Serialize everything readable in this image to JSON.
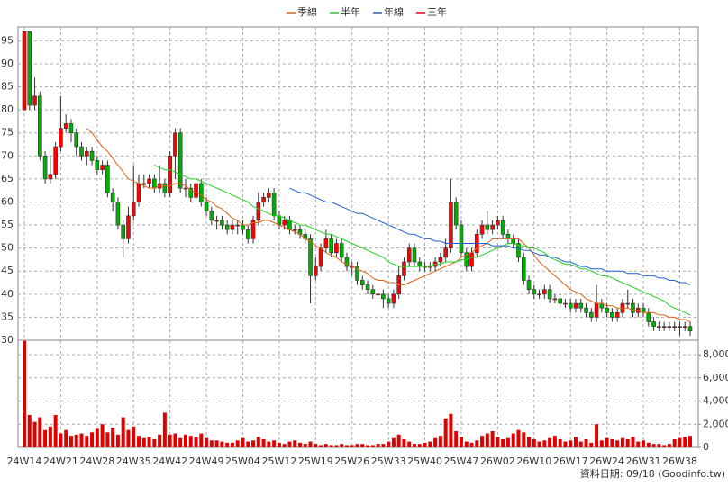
{
  "chart_data": {
    "type": "candlestick",
    "ylim": [
      30,
      98
    ],
    "yticks": [
      30,
      35,
      40,
      45,
      50,
      55,
      60,
      65,
      70,
      75,
      80,
      85,
      90,
      95
    ],
    "grid": true,
    "up_color": "#ff0000",
    "down_color": "#00b000",
    "categories": [
      "24W14",
      null,
      null,
      null,
      null,
      null,
      null,
      "24W21",
      null,
      null,
      null,
      null,
      null,
      null,
      "24W28",
      null,
      null,
      null,
      null,
      null,
      null,
      "24W35",
      null,
      null,
      null,
      null,
      null,
      null,
      "24W42",
      null,
      null,
      null,
      null,
      null,
      null,
      "24W49",
      null,
      null,
      null,
      null,
      null,
      null,
      "25W04",
      null,
      null,
      null,
      null,
      null,
      null,
      "25W12",
      null,
      null,
      null,
      null,
      null,
      null,
      "25W19",
      null,
      null,
      null,
      null,
      null,
      null,
      "25W26",
      null,
      null,
      null,
      null,
      null,
      null,
      "25W33",
      null,
      null,
      null,
      null,
      null,
      null,
      "25W40",
      null,
      null,
      null,
      null,
      null,
      null,
      "25W47",
      null,
      null,
      null,
      null,
      null,
      null,
      "26W02",
      null,
      null,
      null,
      null,
      null,
      null,
      "26W10",
      null,
      null,
      null,
      null,
      null,
      null,
      "26W17",
      null,
      null,
      null,
      null,
      null,
      null,
      "26W24",
      null,
      null,
      null,
      null,
      null,
      null,
      "26W31",
      null,
      null,
      null,
      null,
      null,
      null,
      "26W38",
      null,
      null
    ],
    "open": [
      80,
      97,
      81,
      83,
      70,
      65,
      66,
      72,
      76,
      77,
      75,
      72,
      70,
      71,
      69,
      67,
      68,
      62,
      60,
      55,
      52,
      57,
      60,
      64,
      64,
      65,
      63,
      64,
      62,
      70,
      75,
      63,
      63,
      61,
      64,
      60,
      58,
      56,
      56,
      55,
      54,
      55,
      55,
      54,
      52,
      56,
      60,
      61,
      62,
      57,
      55,
      56,
      54,
      54,
      53,
      52,
      44,
      46,
      50,
      52,
      49,
      51,
      48,
      46,
      46,
      43,
      42,
      41,
      40,
      40,
      39,
      38,
      40,
      44,
      47,
      50,
      47,
      46,
      46,
      46,
      47,
      48,
      50,
      60,
      55,
      49,
      46,
      49,
      53,
      55,
      54,
      55,
      56,
      53,
      52,
      51,
      48,
      43,
      41,
      40,
      40,
      41,
      39,
      39,
      38,
      38,
      37,
      38,
      37,
      36,
      35,
      38,
      37,
      36,
      35,
      36,
      38,
      38,
      36,
      37,
      36,
      34,
      33,
      33,
      33,
      33,
      33,
      33,
      33
    ],
    "high": [
      97,
      97,
      87,
      84,
      71,
      70,
      73,
      83,
      79,
      78,
      76,
      73,
      72,
      72,
      70,
      69,
      69,
      63,
      61,
      56,
      59,
      68,
      66,
      66,
      66,
      66,
      68,
      65,
      71,
      76,
      76,
      65,
      64,
      66,
      65,
      61,
      59,
      57,
      57,
      56,
      56,
      56,
      56,
      55,
      57,
      62,
      62,
      63,
      63,
      58,
      57,
      57,
      55,
      55,
      54,
      53,
      48,
      51,
      54,
      53,
      52,
      52,
      49,
      47,
      47,
      44,
      43,
      42,
      41,
      41,
      40,
      41,
      46,
      48,
      51,
      51,
      48,
      47,
      47,
      48,
      49,
      52,
      65,
      61,
      56,
      50,
      50,
      54,
      56,
      58,
      56,
      57,
      57,
      54,
      53,
      52,
      49,
      44,
      42,
      41,
      42,
      42,
      40,
      40,
      39,
      39,
      39,
      39,
      38,
      37,
      42,
      39,
      38,
      37,
      37,
      39,
      41,
      39,
      38,
      38,
      37,
      35,
      34,
      34,
      34,
      34,
      34,
      34,
      34
    ],
    "low": [
      80,
      80,
      80,
      69,
      64,
      64,
      65,
      71,
      75,
      73,
      70,
      69,
      68,
      68,
      66,
      66,
      61,
      58,
      54,
      48,
      51,
      56,
      59,
      63,
      63,
      62,
      62,
      61,
      61,
      65,
      62,
      61,
      60,
      60,
      59,
      57,
      55,
      54,
      54,
      53,
      53,
      53,
      53,
      51,
      51,
      55,
      59,
      60,
      56,
      54,
      54,
      53,
      53,
      52,
      51,
      38,
      43,
      45,
      49,
      48,
      48,
      47,
      45,
      44,
      42,
      41,
      40,
      39,
      39,
      37,
      37,
      37,
      39,
      43,
      46,
      46,
      45,
      45,
      45,
      45,
      46,
      47,
      49,
      54,
      48,
      45,
      45,
      48,
      52,
      53,
      53,
      54,
      52,
      51,
      50,
      47,
      42,
      40,
      39,
      39,
      39,
      38,
      38,
      37,
      37,
      36,
      36,
      36,
      35,
      34,
      34,
      36,
      35,
      34,
      34,
      35,
      37,
      35,
      35,
      35,
      33,
      32,
      32,
      32,
      32,
      32,
      31,
      32,
      31
    ],
    "close": [
      97,
      81,
      83,
      70,
      65,
      66,
      72,
      76,
      77,
      75,
      72,
      70,
      71,
      69,
      67,
      68,
      62,
      60,
      55,
      52,
      57,
      60,
      64,
      64,
      65,
      63,
      64,
      62,
      70,
      75,
      63,
      63,
      61,
      64,
      60,
      58,
      56,
      56,
      55,
      54,
      55,
      55,
      54,
      52,
      56,
      60,
      61,
      62,
      57,
      55,
      56,
      54,
      54,
      53,
      52,
      44,
      46,
      50,
      52,
      49,
      51,
      48,
      46,
      46,
      43,
      42,
      41,
      40,
      40,
      39,
      38,
      40,
      44,
      47,
      50,
      47,
      46,
      46,
      46,
      47,
      48,
      50,
      60,
      55,
      49,
      46,
      49,
      53,
      55,
      54,
      55,
      56,
      53,
      52,
      51,
      48,
      43,
      41,
      40,
      40,
      41,
      39,
      39,
      38,
      38,
      37,
      38,
      37,
      36,
      35,
      38,
      37,
      36,
      35,
      36,
      38,
      38,
      36,
      37,
      36,
      34,
      33,
      33,
      33,
      33,
      33,
      33,
      33,
      32
    ],
    "series": [
      {
        "name": "季線",
        "color": "#e06010",
        "values": [
          null,
          null,
          null,
          null,
          null,
          null,
          null,
          null,
          null,
          null,
          null,
          null,
          76,
          75,
          73.5,
          72,
          71,
          69.5,
          68,
          66.5,
          65,
          64.5,
          64,
          63.5,
          63,
          63,
          63.5,
          63.5,
          63.5,
          64,
          64,
          63.5,
          62.5,
          62,
          61.5,
          60.5,
          60,
          59,
          58.5,
          57.5,
          56.5,
          56,
          55,
          55,
          55.5,
          55.5,
          56,
          56,
          55.5,
          55,
          54.5,
          54,
          53.5,
          53,
          52,
          51.5,
          50.5,
          50,
          49,
          48.5,
          48,
          47,
          46.5,
          46,
          45.5,
          45,
          44.5,
          43.5,
          43,
          43,
          42.5,
          42.5,
          42,
          42,
          42.5,
          43,
          43.5,
          44,
          44.5,
          45,
          45.5,
          46,
          46.5,
          47,
          48,
          48.5,
          49,
          50,
          50.5,
          51,
          52,
          52,
          52,
          52,
          52,
          52,
          51,
          50,
          48.5,
          47,
          46,
          45,
          44,
          43,
          42,
          41,
          40.5,
          40,
          39,
          38.5,
          38,
          38,
          37.5,
          37.5,
          37,
          37,
          37,
          36.5,
          36.5,
          36,
          36,
          36,
          35.5,
          35.5,
          35,
          35,
          34.5,
          34.5,
          34
        ]
      },
      {
        "name": "半年",
        "color": "#20d020",
        "values": [
          null,
          null,
          null,
          null,
          null,
          null,
          null,
          null,
          null,
          null,
          null,
          null,
          null,
          null,
          null,
          null,
          null,
          null,
          null,
          null,
          null,
          null,
          null,
          null,
          null,
          68,
          67.5,
          67,
          67,
          66.5,
          66,
          65.5,
          65,
          65,
          64.5,
          64,
          63.5,
          63,
          62.5,
          62,
          61.5,
          61,
          60.5,
          60,
          59,
          58.5,
          58,
          57.5,
          57,
          57,
          56.5,
          56,
          55.5,
          55,
          55,
          54.5,
          54,
          53.5,
          53,
          53,
          52.5,
          52,
          51.5,
          51,
          50.5,
          50,
          49.5,
          49,
          48.5,
          48,
          47,
          46.5,
          46,
          46,
          46,
          46,
          46,
          46,
          46,
          46.5,
          46.5,
          47,
          47,
          47,
          47.5,
          47.5,
          48,
          48,
          48.5,
          49,
          49.5,
          50,
          50.5,
          51,
          51,
          50.5,
          50.5,
          50,
          50,
          49.5,
          49,
          48,
          47.5,
          47,
          46.5,
          46.5,
          46,
          45.5,
          45.5,
          45,
          44.5,
          44,
          44,
          43.5,
          43,
          42.5,
          42,
          41.5,
          41,
          40.5,
          40,
          39.5,
          39,
          38.5,
          37.5,
          37,
          36.5,
          36,
          35.5
        ]
      },
      {
        "name": "年線",
        "color": "#2060d0",
        "values": [
          null,
          null,
          null,
          null,
          null,
          null,
          null,
          null,
          null,
          null,
          null,
          null,
          null,
          null,
          null,
          null,
          null,
          null,
          null,
          null,
          null,
          null,
          null,
          null,
          null,
          null,
          null,
          null,
          null,
          null,
          null,
          null,
          null,
          null,
          null,
          null,
          null,
          null,
          null,
          null,
          null,
          null,
          null,
          null,
          null,
          null,
          null,
          null,
          null,
          null,
          null,
          63,
          62.5,
          62,
          62,
          61.5,
          61,
          60.5,
          60,
          60,
          59.5,
          59,
          58.5,
          58,
          57.5,
          57.5,
          57,
          56.5,
          56,
          55.5,
          55,
          54.5,
          54,
          53.5,
          53,
          53,
          52.5,
          52,
          52,
          51.5,
          51.5,
          51,
          51,
          51,
          51,
          51,
          51,
          51,
          51,
          51,
          50.5,
          50.5,
          50.5,
          50.5,
          50,
          50,
          49.5,
          49.5,
          49,
          48.5,
          48.5,
          48,
          48,
          47.5,
          47,
          47,
          46.5,
          46,
          46,
          45.5,
          45.5,
          45.5,
          45,
          45,
          45,
          45,
          44.5,
          44.5,
          44.5,
          44,
          44,
          44,
          43.5,
          43.5,
          43,
          43,
          42.5,
          42.5,
          42
        ]
      },
      {
        "name": "三年",
        "color": "#e00000"
      }
    ],
    "volume": {
      "color": "#e00000",
      "ylim": [
        0,
        9250
      ],
      "yticks": [
        0,
        {
          "value": 2000,
          "label": "2,000"
        },
        {
          "value": 4000,
          "label": "4,000"
        },
        {
          "value": 6000,
          "label": "6,000"
        },
        {
          "value": 8000,
          "label": "8,000"
        }
      ],
      "values": [
        9200,
        2800,
        2200,
        2600,
        1500,
        1800,
        2800,
        1200,
        1500,
        1000,
        1100,
        1200,
        1000,
        1300,
        1600,
        2000,
        1300,
        1700,
        1100,
        2600,
        1500,
        1800,
        1000,
        800,
        900,
        700,
        1100,
        3000,
        1100,
        1200,
        800,
        1100,
        1000,
        900,
        1200,
        800,
        600,
        600,
        500,
        400,
        400,
        600,
        800,
        500,
        600,
        900,
        700,
        500,
        600,
        400,
        300,
        500,
        600,
        400,
        300,
        500,
        300,
        200,
        300,
        200,
        200,
        300,
        200,
        200,
        300,
        300,
        200,
        200,
        300,
        300,
        500,
        800,
        1100,
        700,
        500,
        300,
        300,
        400,
        500,
        800,
        1000,
        2500,
        2900,
        1400,
        900,
        500,
        400,
        600,
        1000,
        1200,
        1400,
        900,
        700,
        800,
        1200,
        1500,
        1300,
        900,
        700,
        500,
        600,
        800,
        1000,
        700,
        500,
        600,
        900,
        500,
        700,
        400,
        2000,
        600,
        800,
        700,
        600,
        800,
        700,
        900,
        500,
        600,
        400,
        300,
        300,
        200,
        300,
        700,
        800,
        900,
        1000
      ]
    },
    "footnote": "資料日期: 09/18 (Goodinfo.tw)"
  }
}
